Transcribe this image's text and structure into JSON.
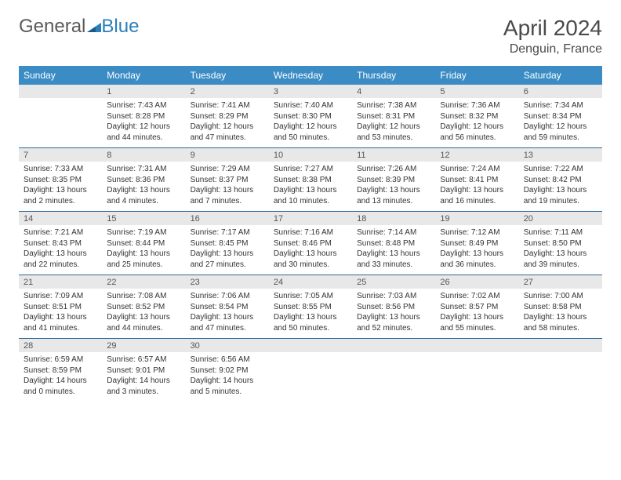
{
  "logo": {
    "text1": "General",
    "text2": "Blue"
  },
  "title": "April 2024",
  "location": "Denguin, France",
  "colors": {
    "header_bg": "#3b8cc4",
    "header_text": "#ffffff",
    "daynum_bg": "#e8e8e8",
    "week_border": "#2c6a9e",
    "body_text": "#333333",
    "logo_gray": "#5a5a5a",
    "logo_blue": "#2c7fb8"
  },
  "day_names": [
    "Sunday",
    "Monday",
    "Tuesday",
    "Wednesday",
    "Thursday",
    "Friday",
    "Saturday"
  ],
  "weeks": [
    [
      {
        "day": "",
        "sunrise": "",
        "sunset": "",
        "daylight": ""
      },
      {
        "day": "1",
        "sunrise": "Sunrise: 7:43 AM",
        "sunset": "Sunset: 8:28 PM",
        "daylight": "Daylight: 12 hours and 44 minutes."
      },
      {
        "day": "2",
        "sunrise": "Sunrise: 7:41 AM",
        "sunset": "Sunset: 8:29 PM",
        "daylight": "Daylight: 12 hours and 47 minutes."
      },
      {
        "day": "3",
        "sunrise": "Sunrise: 7:40 AM",
        "sunset": "Sunset: 8:30 PM",
        "daylight": "Daylight: 12 hours and 50 minutes."
      },
      {
        "day": "4",
        "sunrise": "Sunrise: 7:38 AM",
        "sunset": "Sunset: 8:31 PM",
        "daylight": "Daylight: 12 hours and 53 minutes."
      },
      {
        "day": "5",
        "sunrise": "Sunrise: 7:36 AM",
        "sunset": "Sunset: 8:32 PM",
        "daylight": "Daylight: 12 hours and 56 minutes."
      },
      {
        "day": "6",
        "sunrise": "Sunrise: 7:34 AM",
        "sunset": "Sunset: 8:34 PM",
        "daylight": "Daylight: 12 hours and 59 minutes."
      }
    ],
    [
      {
        "day": "7",
        "sunrise": "Sunrise: 7:33 AM",
        "sunset": "Sunset: 8:35 PM",
        "daylight": "Daylight: 13 hours and 2 minutes."
      },
      {
        "day": "8",
        "sunrise": "Sunrise: 7:31 AM",
        "sunset": "Sunset: 8:36 PM",
        "daylight": "Daylight: 13 hours and 4 minutes."
      },
      {
        "day": "9",
        "sunrise": "Sunrise: 7:29 AM",
        "sunset": "Sunset: 8:37 PM",
        "daylight": "Daylight: 13 hours and 7 minutes."
      },
      {
        "day": "10",
        "sunrise": "Sunrise: 7:27 AM",
        "sunset": "Sunset: 8:38 PM",
        "daylight": "Daylight: 13 hours and 10 minutes."
      },
      {
        "day": "11",
        "sunrise": "Sunrise: 7:26 AM",
        "sunset": "Sunset: 8:39 PM",
        "daylight": "Daylight: 13 hours and 13 minutes."
      },
      {
        "day": "12",
        "sunrise": "Sunrise: 7:24 AM",
        "sunset": "Sunset: 8:41 PM",
        "daylight": "Daylight: 13 hours and 16 minutes."
      },
      {
        "day": "13",
        "sunrise": "Sunrise: 7:22 AM",
        "sunset": "Sunset: 8:42 PM",
        "daylight": "Daylight: 13 hours and 19 minutes."
      }
    ],
    [
      {
        "day": "14",
        "sunrise": "Sunrise: 7:21 AM",
        "sunset": "Sunset: 8:43 PM",
        "daylight": "Daylight: 13 hours and 22 minutes."
      },
      {
        "day": "15",
        "sunrise": "Sunrise: 7:19 AM",
        "sunset": "Sunset: 8:44 PM",
        "daylight": "Daylight: 13 hours and 25 minutes."
      },
      {
        "day": "16",
        "sunrise": "Sunrise: 7:17 AM",
        "sunset": "Sunset: 8:45 PM",
        "daylight": "Daylight: 13 hours and 27 minutes."
      },
      {
        "day": "17",
        "sunrise": "Sunrise: 7:16 AM",
        "sunset": "Sunset: 8:46 PM",
        "daylight": "Daylight: 13 hours and 30 minutes."
      },
      {
        "day": "18",
        "sunrise": "Sunrise: 7:14 AM",
        "sunset": "Sunset: 8:48 PM",
        "daylight": "Daylight: 13 hours and 33 minutes."
      },
      {
        "day": "19",
        "sunrise": "Sunrise: 7:12 AM",
        "sunset": "Sunset: 8:49 PM",
        "daylight": "Daylight: 13 hours and 36 minutes."
      },
      {
        "day": "20",
        "sunrise": "Sunrise: 7:11 AM",
        "sunset": "Sunset: 8:50 PM",
        "daylight": "Daylight: 13 hours and 39 minutes."
      }
    ],
    [
      {
        "day": "21",
        "sunrise": "Sunrise: 7:09 AM",
        "sunset": "Sunset: 8:51 PM",
        "daylight": "Daylight: 13 hours and 41 minutes."
      },
      {
        "day": "22",
        "sunrise": "Sunrise: 7:08 AM",
        "sunset": "Sunset: 8:52 PM",
        "daylight": "Daylight: 13 hours and 44 minutes."
      },
      {
        "day": "23",
        "sunrise": "Sunrise: 7:06 AM",
        "sunset": "Sunset: 8:54 PM",
        "daylight": "Daylight: 13 hours and 47 minutes."
      },
      {
        "day": "24",
        "sunrise": "Sunrise: 7:05 AM",
        "sunset": "Sunset: 8:55 PM",
        "daylight": "Daylight: 13 hours and 50 minutes."
      },
      {
        "day": "25",
        "sunrise": "Sunrise: 7:03 AM",
        "sunset": "Sunset: 8:56 PM",
        "daylight": "Daylight: 13 hours and 52 minutes."
      },
      {
        "day": "26",
        "sunrise": "Sunrise: 7:02 AM",
        "sunset": "Sunset: 8:57 PM",
        "daylight": "Daylight: 13 hours and 55 minutes."
      },
      {
        "day": "27",
        "sunrise": "Sunrise: 7:00 AM",
        "sunset": "Sunset: 8:58 PM",
        "daylight": "Daylight: 13 hours and 58 minutes."
      }
    ],
    [
      {
        "day": "28",
        "sunrise": "Sunrise: 6:59 AM",
        "sunset": "Sunset: 8:59 PM",
        "daylight": "Daylight: 14 hours and 0 minutes."
      },
      {
        "day": "29",
        "sunrise": "Sunrise: 6:57 AM",
        "sunset": "Sunset: 9:01 PM",
        "daylight": "Daylight: 14 hours and 3 minutes."
      },
      {
        "day": "30",
        "sunrise": "Sunrise: 6:56 AM",
        "sunset": "Sunset: 9:02 PM",
        "daylight": "Daylight: 14 hours and 5 minutes."
      },
      {
        "day": "",
        "sunrise": "",
        "sunset": "",
        "daylight": ""
      },
      {
        "day": "",
        "sunrise": "",
        "sunset": "",
        "daylight": ""
      },
      {
        "day": "",
        "sunrise": "",
        "sunset": "",
        "daylight": ""
      },
      {
        "day": "",
        "sunrise": "",
        "sunset": "",
        "daylight": ""
      }
    ]
  ]
}
